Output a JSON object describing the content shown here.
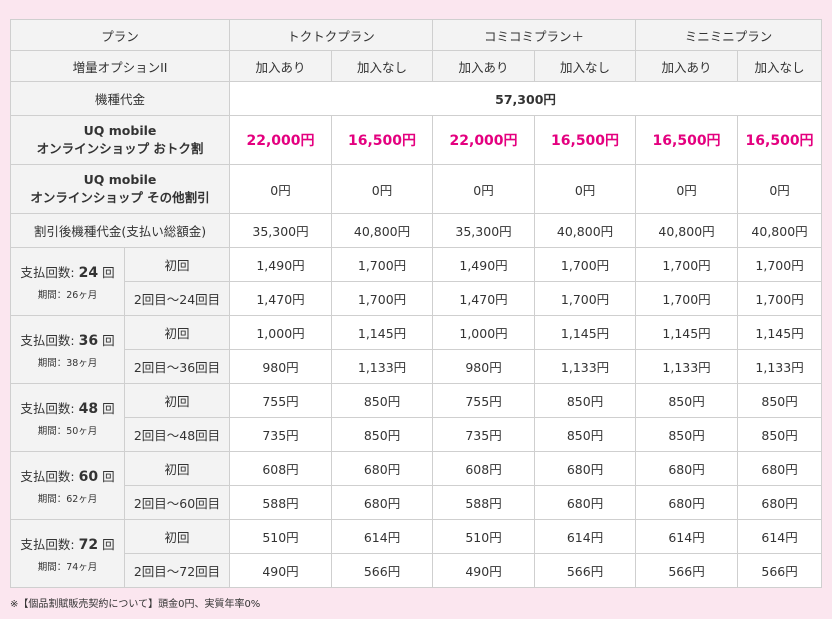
{
  "header": {
    "plan_label": "プラン",
    "plans": [
      "トクトクプラン",
      "コミコミプラン＋",
      "ミニミニプラン"
    ]
  },
  "option": {
    "label": "増量オプションII",
    "join": "加入あり",
    "nojoin": "加入なし"
  },
  "price_row": {
    "label": "機種代金",
    "value": "57,300円"
  },
  "otoku_row": {
    "label1": "UQ mobile",
    "label2": "オンラインショップ おトク割",
    "values": [
      "22,000円",
      "16,500円",
      "22,000円",
      "16,500円",
      "16,500円",
      "16,500円"
    ]
  },
  "other_row": {
    "label1": "UQ mobile",
    "label2": "オンラインショップ その他割引",
    "values": [
      "0円",
      "0円",
      "0円",
      "0円",
      "0円",
      "0円"
    ]
  },
  "after_row": {
    "label": "割引後機種代金(支払い総額金)",
    "values": [
      "35,300円",
      "40,800円",
      "35,300円",
      "40,800円",
      "40,800円",
      "40,800円"
    ]
  },
  "payments": [
    {
      "count_prefix": "支払回数: ",
      "count": "24",
      "count_suffix": " 回",
      "period": "期間：26ヶ月",
      "first_label": "初回",
      "rest_label": "2回目〜24回目",
      "first": [
        "1,490円",
        "1,700円",
        "1,490円",
        "1,700円",
        "1,700円",
        "1,700円"
      ],
      "rest": [
        "1,470円",
        "1,700円",
        "1,470円",
        "1,700円",
        "1,700円",
        "1,700円"
      ]
    },
    {
      "count_prefix": "支払回数: ",
      "count": "36",
      "count_suffix": " 回",
      "period": "期間：38ヶ月",
      "first_label": "初回",
      "rest_label": "2回目〜36回目",
      "first": [
        "1,000円",
        "1,145円",
        "1,000円",
        "1,145円",
        "1,145円",
        "1,145円"
      ],
      "rest": [
        "980円",
        "1,133円",
        "980円",
        "1,133円",
        "1,133円",
        "1,133円"
      ]
    },
    {
      "count_prefix": "支払回数: ",
      "count": "48",
      "count_suffix": " 回",
      "period": "期間：50ヶ月",
      "first_label": "初回",
      "rest_label": "2回目〜48回目",
      "first": [
        "755円",
        "850円",
        "755円",
        "850円",
        "850円",
        "850円"
      ],
      "rest": [
        "735円",
        "850円",
        "735円",
        "850円",
        "850円",
        "850円"
      ]
    },
    {
      "count_prefix": "支払回数: ",
      "count": "60",
      "count_suffix": " 回",
      "period": "期間：62ヶ月",
      "first_label": "初回",
      "rest_label": "2回目〜60回目",
      "first": [
        "608円",
        "680円",
        "608円",
        "680円",
        "680円",
        "680円"
      ],
      "rest": [
        "588円",
        "680円",
        "588円",
        "680円",
        "680円",
        "680円"
      ]
    },
    {
      "count_prefix": "支払回数: ",
      "count": "72",
      "count_suffix": " 回",
      "period": "期間：74ヶ月",
      "first_label": "初回",
      "rest_label": "2回目〜72回目",
      "first": [
        "510円",
        "614円",
        "510円",
        "614円",
        "614円",
        "614円"
      ],
      "rest": [
        "490円",
        "566円",
        "490円",
        "566円",
        "566円",
        "566円"
      ]
    }
  ],
  "footnote": "※【個品割賦販売契約について】頭金0円、実質年率0%",
  "colors": {
    "accent": "#e4007f",
    "background": "#fbe6ef",
    "header_bg": "#f3f3f3"
  }
}
